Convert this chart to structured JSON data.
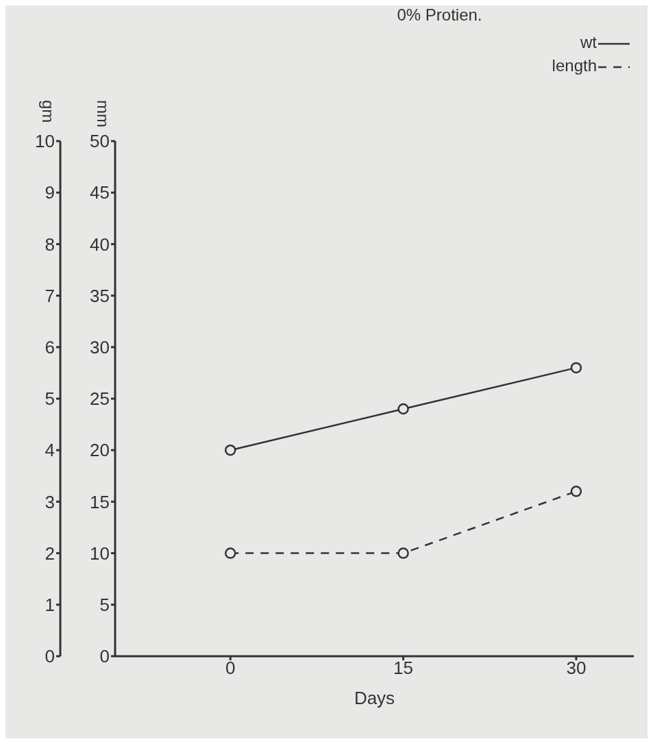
{
  "chart_data": {
    "type": "line",
    "title": "0% Protien.",
    "xlabel": "Days",
    "ylabel": "mm",
    "y2label": "gm",
    "x": [
      0,
      15,
      30
    ],
    "series": [
      {
        "name": "wt",
        "color": "#333333",
        "values": [
          4,
          4.8,
          5.6
        ],
        "axis": "y2",
        "line_style": "solid"
      },
      {
        "name": "length",
        "color": "#333333",
        "values": [
          10,
          10,
          16
        ],
        "line_style": "dashed"
      }
    ],
    "xlim": [
      -10,
      35
    ],
    "xticks": [
      0,
      15,
      30
    ],
    "ylim": [
      0,
      50
    ],
    "yticks": [
      0,
      5,
      10,
      15,
      20,
      25,
      30,
      35,
      40,
      45,
      50
    ],
    "y2lim": [
      0,
      10
    ],
    "y2ticks": [
      0,
      1,
      2,
      3,
      4,
      5,
      6,
      7,
      8,
      9,
      10
    ],
    "marker": "circle",
    "legend": "top right",
    "grid": false
  }
}
